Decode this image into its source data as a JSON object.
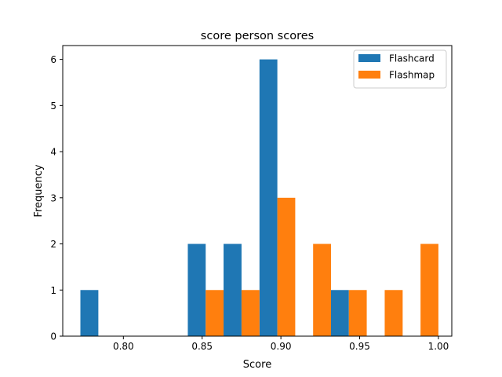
{
  "chart_data": {
    "type": "bar",
    "title": "score person scores",
    "xlabel": "Score",
    "ylabel": "Frequency",
    "xlim": [
      0.7615,
      1.0085
    ],
    "ylim": [
      0,
      6.3
    ],
    "xticks": [
      0.8,
      0.85,
      0.9,
      0.95,
      1.0
    ],
    "xtick_labels": [
      "0.80",
      "0.85",
      "0.90",
      "0.95",
      "1.00"
    ],
    "yticks": [
      0,
      1,
      2,
      3,
      4,
      5,
      6
    ],
    "ytick_labels": [
      "0",
      "1",
      "2",
      "3",
      "4",
      "5",
      "6"
    ],
    "bin_edges": [
      0.7727,
      0.7955,
      0.8182,
      0.8409,
      0.8636,
      0.8864,
      0.9091,
      0.9318,
      0.9545,
      0.9773,
      1.0
    ],
    "legend": "top-right",
    "grid": false,
    "series": [
      {
        "name": "Flashcard",
        "color": "#1f77b4",
        "values": [
          1,
          0,
          0,
          2,
          2,
          6,
          0,
          1,
          0,
          0
        ]
      },
      {
        "name": "Flashmap",
        "color": "#ff7f0e",
        "values": [
          0,
          0,
          0,
          1,
          1,
          3,
          2,
          1,
          1,
          2
        ]
      }
    ]
  }
}
